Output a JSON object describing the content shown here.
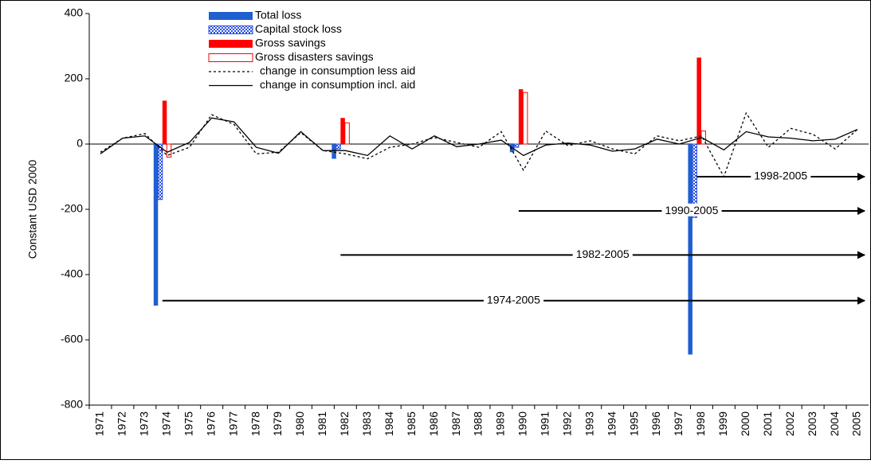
{
  "chart_data": {
    "type": "bar_line",
    "ylabel": "Constant USD 2000",
    "categories": [
      "1971",
      "1972",
      "1973",
      "1974",
      "1975",
      "1976",
      "1977",
      "1978",
      "1979",
      "1980",
      "1981",
      "1982",
      "1983",
      "1984",
      "1985",
      "1986",
      "1987",
      "1988",
      "1989",
      "1990",
      "1991",
      "1992",
      "1993",
      "1994",
      "1995",
      "1996",
      "1997",
      "1998",
      "1999",
      "2000",
      "2001",
      "2002",
      "2003",
      "2004",
      "2005"
    ],
    "ylim": [
      -800,
      400
    ],
    "yticks": [
      -800,
      -600,
      -400,
      -200,
      0,
      200,
      400
    ],
    "series": [
      {
        "name": "Total loss",
        "kind": "bar",
        "color": "#1f5fd0",
        "values": [
          null,
          null,
          null,
          -495,
          null,
          null,
          null,
          null,
          null,
          null,
          null,
          -45,
          null,
          null,
          null,
          null,
          null,
          null,
          null,
          -25,
          null,
          null,
          null,
          null,
          null,
          null,
          null,
          -645,
          null,
          null,
          null,
          null,
          null,
          null,
          null
        ]
      },
      {
        "name": "Capital stock loss",
        "kind": "bar",
        "color": "#2a4fe0",
        "pattern": "checker",
        "values": [
          null,
          null,
          null,
          -170,
          null,
          null,
          null,
          null,
          null,
          null,
          null,
          -15,
          null,
          null,
          null,
          null,
          null,
          null,
          null,
          -10,
          null,
          null,
          null,
          null,
          null,
          null,
          null,
          -225,
          null,
          null,
          null,
          null,
          null,
          null,
          null
        ]
      },
      {
        "name": "Gross savings",
        "kind": "bar",
        "color": "#ff0000",
        "values": [
          null,
          null,
          null,
          133,
          null,
          null,
          null,
          null,
          null,
          null,
          null,
          80,
          null,
          null,
          null,
          null,
          null,
          null,
          null,
          168,
          null,
          null,
          null,
          null,
          null,
          null,
          null,
          265,
          null,
          null,
          null,
          null,
          null,
          null,
          null
        ]
      },
      {
        "name": "Gross disasters savings",
        "kind": "bar",
        "color": "#ff0000",
        "pattern": "hollow",
        "values": [
          null,
          null,
          null,
          -40,
          null,
          null,
          null,
          null,
          null,
          null,
          null,
          65,
          null,
          null,
          null,
          null,
          null,
          null,
          null,
          158,
          null,
          null,
          null,
          null,
          null,
          null,
          null,
          40,
          null,
          null,
          null,
          null,
          null,
          null,
          null
        ]
      },
      {
        "name": "change in consumption less aid",
        "kind": "line",
        "color": "#000000",
        "dash": true,
        "values": [
          -25,
          18,
          32,
          -35,
          -10,
          90,
          60,
          -30,
          -25,
          35,
          -20,
          -30,
          -45,
          -10,
          0,
          20,
          5,
          -10,
          38,
          -80,
          40,
          -5,
          10,
          -15,
          -30,
          25,
          10,
          25,
          -100,
          95,
          -10,
          48,
          30,
          -15,
          45
        ]
      },
      {
        "name": "change in consumption incl. aid",
        "kind": "line",
        "color": "#000000",
        "dash": false,
        "values": [
          -30,
          18,
          25,
          -25,
          5,
          80,
          68,
          -10,
          -28,
          38,
          -20,
          -20,
          -35,
          25,
          -15,
          25,
          -8,
          0,
          12,
          -35,
          -3,
          3,
          -3,
          -22,
          -15,
          15,
          0,
          20,
          -18,
          38,
          22,
          18,
          10,
          15,
          45
        ]
      }
    ],
    "annotations": [
      {
        "text": "1998-2005",
        "x": "1998",
        "y": -100
      },
      {
        "text": "1990-2005",
        "x": "1990",
        "y": -205
      },
      {
        "text": "1982-2005",
        "x": "1982",
        "y": -340
      },
      {
        "text": "1974-2005",
        "x": "1974",
        "y": -480
      }
    ]
  }
}
